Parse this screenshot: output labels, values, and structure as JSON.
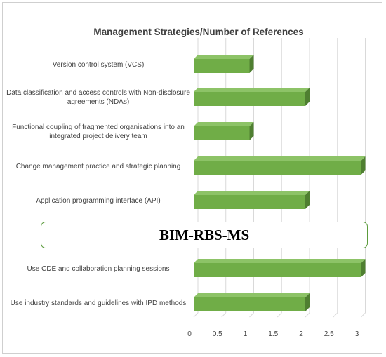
{
  "banner": {
    "text": "BIM-RBS-MS"
  },
  "chart_data": {
    "type": "bar",
    "orientation": "horizontal",
    "title": "Management Strategies/Number of References",
    "xlabel": "",
    "ylabel": "",
    "xlim": [
      0,
      3
    ],
    "ticks": [
      "0",
      "0.5",
      "1",
      "1.5",
      "2",
      "2.5",
      "3"
    ],
    "grid": true,
    "bar_color": "#70ad47",
    "categories": [
      "Version control system (VCS)",
      "Data classification and access controls with Non-disclosure agreements (NDAs)",
      "Functional coupling of fragmented organisations into an integrated project delivery team",
      "Change management practice  and strategic planning",
      "Application programming interface (API)",
      "Use CDE and collaboration planning sessions",
      "Use industry standards and guidelines with IPD methods"
    ],
    "values": [
      1,
      2,
      1,
      3,
      2,
      3,
      2
    ]
  }
}
